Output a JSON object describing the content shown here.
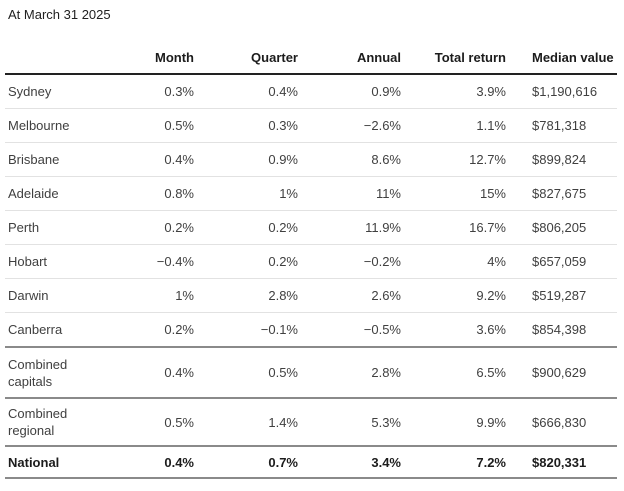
{
  "chart_data": {
    "type": "table",
    "title": "At March 31 2025",
    "columns": [
      "",
      "Month",
      "Quarter",
      "Annual",
      "Total return",
      "Median value"
    ],
    "rows": [
      [
        "Sydney",
        "0.3%",
        "0.4%",
        "0.9%",
        "3.9%",
        "$1,190,616"
      ],
      [
        "Melbourne",
        "0.5%",
        "0.3%",
        "−2.6%",
        "1.1%",
        "$781,318"
      ],
      [
        "Brisbane",
        "0.4%",
        "0.9%",
        "8.6%",
        "12.7%",
        "$899,824"
      ],
      [
        "Adelaide",
        "0.8%",
        "1%",
        "11%",
        "15%",
        "$827,675"
      ],
      [
        "Perth",
        "0.2%",
        "0.2%",
        "11.9%",
        "16.7%",
        "$806,205"
      ],
      [
        "Hobart",
        "−0.4%",
        "0.2%",
        "−0.2%",
        "4%",
        "$657,059"
      ],
      [
        "Darwin",
        "1%",
        "2.8%",
        "2.6%",
        "9.2%",
        "$519,287"
      ],
      [
        "Canberra",
        "0.2%",
        "−0.1%",
        "−0.5%",
        "3.6%",
        "$854,398"
      ],
      [
        "Combined capitals",
        "0.4%",
        "0.5%",
        "2.8%",
        "6.5%",
        "$900,629"
      ],
      [
        "Combined regional",
        "0.5%",
        "1.4%",
        "5.3%",
        "9.9%",
        "$666,830"
      ],
      [
        "National",
        "0.4%",
        "0.7%",
        "3.4%",
        "7.2%",
        "$820,331"
      ]
    ],
    "layout": {
      "numeric_columns_alignment": "right",
      "median_value_alignment": "left",
      "section_break_after_rows": [
        "Canberra",
        "Combined capitals",
        "Combined regional",
        "National"
      ]
    },
    "colors": {
      "header_text": "#1c1c1c",
      "body_text": "#404040",
      "header_rule": "#222222",
      "row_rule_light": "#e2e2e2",
      "section_rule_dark": "#8a8a8a",
      "background": "#ffffff"
    }
  }
}
